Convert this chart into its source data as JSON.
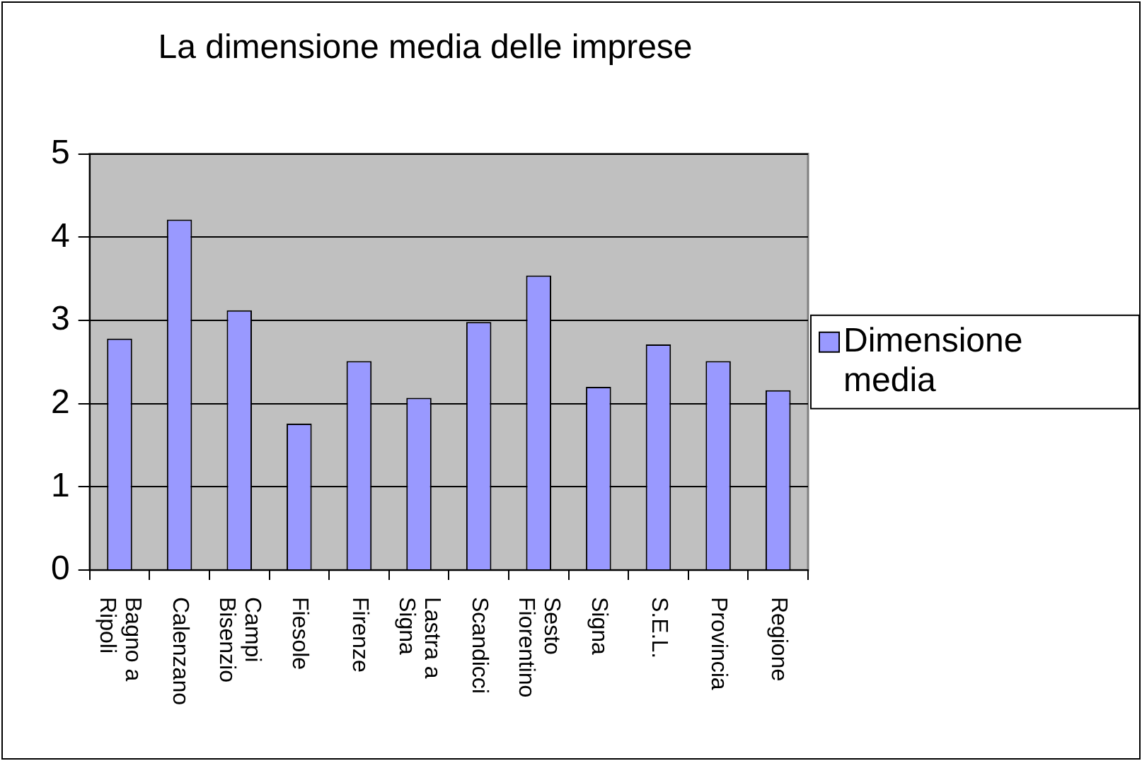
{
  "chart_data": {
    "type": "bar",
    "title": "La dimensione media delle imprese",
    "categories": [
      "Bagno a Ripoli",
      "Calenzano",
      "Campi Bisenzio",
      "Fiesole",
      "Firenze",
      "Lastra a Signa",
      "Scandicci",
      "Sesto Fiorentino",
      "Signa",
      "S.E.L.",
      "Provincia",
      "Regione"
    ],
    "series": [
      {
        "name": "Dimensione media",
        "color": "#9999ff",
        "values": [
          2.78,
          4.21,
          3.12,
          1.76,
          2.51,
          2.07,
          2.98,
          3.54,
          2.2,
          2.71,
          2.51,
          2.16
        ]
      }
    ],
    "ylim": [
      0,
      5
    ],
    "yticks": [
      0,
      1,
      2,
      3,
      4,
      5
    ],
    "grid": "y",
    "legend": "right"
  }
}
